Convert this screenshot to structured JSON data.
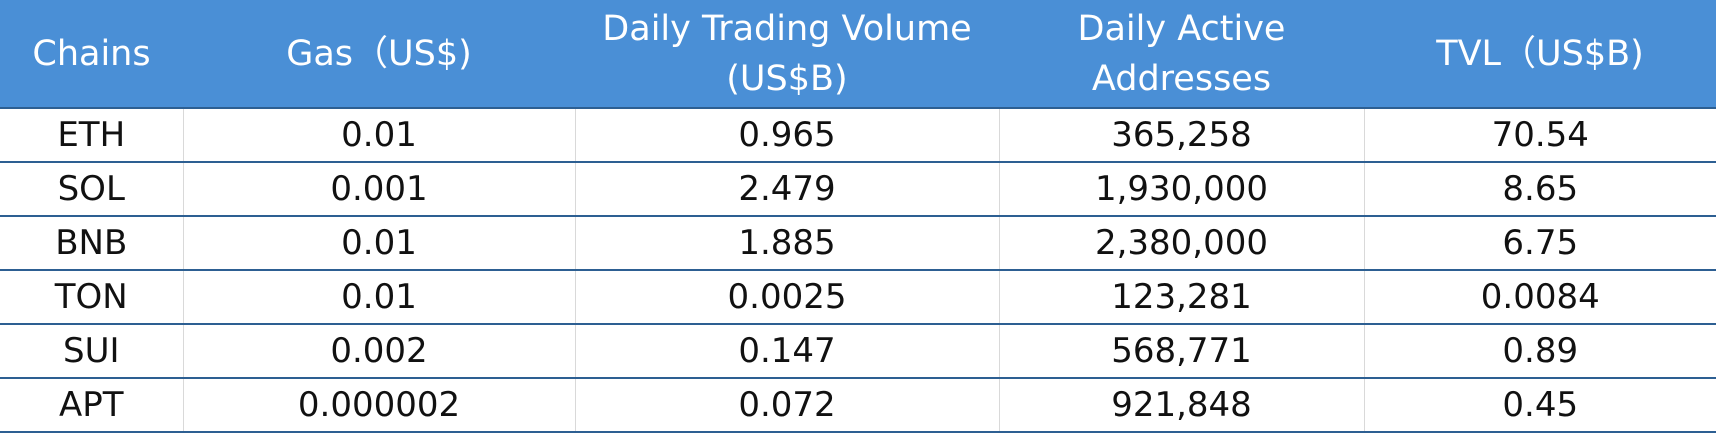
{
  "table": {
    "headers": [
      [
        "Chains"
      ],
      [
        "Gas（US$)"
      ],
      [
        "Daily Trading Volume",
        "(US$B)"
      ],
      [
        "Daily Active",
        "Addresses"
      ],
      [
        "TVL（US$B)"
      ]
    ],
    "rows": [
      [
        "ETH",
        "0.01",
        "0.965",
        "365,258",
        "70.54"
      ],
      [
        "SOL",
        "0.001",
        "2.479",
        "1,930,000",
        "8.65"
      ],
      [
        "BNB",
        "0.01",
        "1.885",
        "2,380,000",
        "6.75"
      ],
      [
        "TON",
        "0.01",
        "0.0025",
        "123,281",
        "0.0084"
      ],
      [
        "SUI",
        "0.002",
        "0.147",
        "568,771",
        "0.89"
      ],
      [
        "APT",
        "0.000002",
        "0.072",
        "921,848",
        "0.45"
      ]
    ]
  },
  "colors": {
    "header_background": "#4a8fd6",
    "header_text": "#ffffff",
    "row_border": "#2d5f92"
  }
}
